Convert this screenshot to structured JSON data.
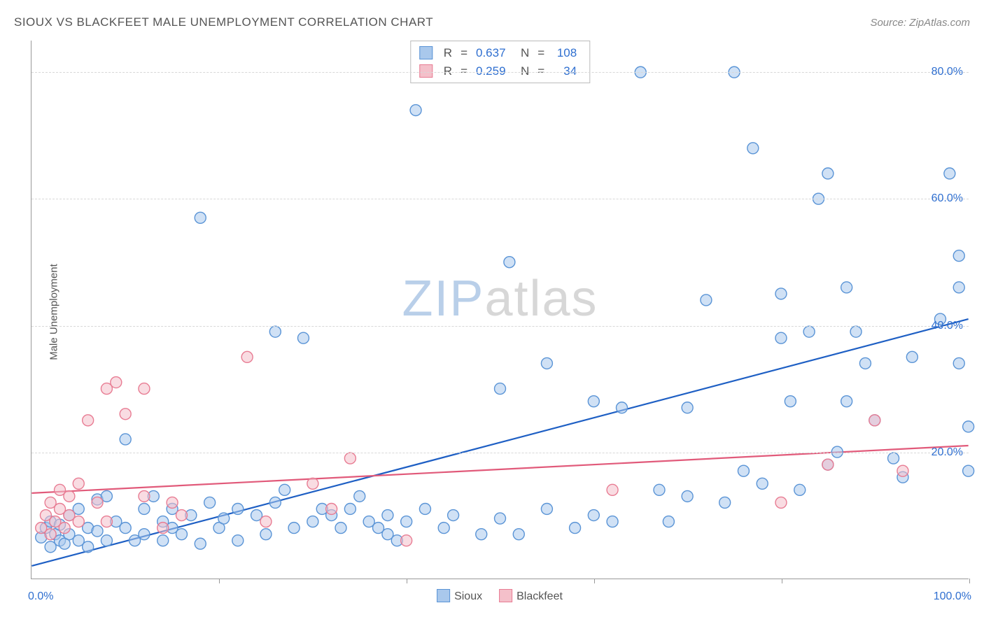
{
  "title": "SIOUX VS BLACKFEET MALE UNEMPLOYMENT CORRELATION CHART",
  "source_label": "Source: ZipAtlas.com",
  "ylabel": "Male Unemployment",
  "watermark": {
    "left": "ZIP",
    "right": "atlas"
  },
  "chart": {
    "type": "scatter",
    "background_color": "#ffffff",
    "border_color": "#999999",
    "grid_color": "#d8d8d8",
    "grid_dash": "4,4",
    "xlim": [
      0,
      100
    ],
    "ylim": [
      0,
      85
    ],
    "xticks": [
      0,
      20,
      40,
      60,
      80,
      100
    ],
    "yticks": [
      20,
      40,
      60,
      80
    ],
    "ytick_labels": [
      "20.0%",
      "40.0%",
      "60.0%",
      "80.0%"
    ],
    "ytick_color": "#2f6fd0",
    "xmin_label": "0.0%",
    "xmax_label": "100.0%",
    "xlabel_color": "#2f6fd0",
    "label_fontsize": 16,
    "title_fontsize": 17,
    "marker_radius": 8,
    "marker_stroke_width": 1.4,
    "trend_line_width": 2.2,
    "series": [
      {
        "name": "Sioux",
        "fill_color": "#a9c8ec",
        "stroke_color": "#5a94d6",
        "fill_opacity": 0.55,
        "line_color": "#1e5fc4",
        "R": "0.637",
        "N": "108",
        "trend": {
          "x1": 0,
          "y1": 2,
          "x2": 100,
          "y2": 41
        },
        "points": [
          [
            1,
            6.5
          ],
          [
            1.5,
            8
          ],
          [
            2,
            5
          ],
          [
            2,
            9
          ],
          [
            2.5,
            7
          ],
          [
            3,
            6
          ],
          [
            3,
            8.5
          ],
          [
            3.5,
            5.5
          ],
          [
            4,
            7
          ],
          [
            4,
            10
          ],
          [
            5,
            6
          ],
          [
            5,
            11
          ],
          [
            6,
            5
          ],
          [
            6,
            8
          ],
          [
            7,
            7.5
          ],
          [
            7,
            12.5
          ],
          [
            8,
            6
          ],
          [
            8,
            13
          ],
          [
            9,
            9
          ],
          [
            10,
            22
          ],
          [
            10,
            8
          ],
          [
            11,
            6
          ],
          [
            12,
            11
          ],
          [
            12,
            7
          ],
          [
            13,
            13
          ],
          [
            14,
            9
          ],
          [
            14,
            6
          ],
          [
            15,
            8
          ],
          [
            15,
            11
          ],
          [
            16,
            7
          ],
          [
            17,
            10
          ],
          [
            18,
            5.5
          ],
          [
            18,
            57
          ],
          [
            19,
            12
          ],
          [
            20,
            8
          ],
          [
            20.5,
            9.5
          ],
          [
            22,
            6
          ],
          [
            22,
            11
          ],
          [
            24,
            10
          ],
          [
            25,
            7
          ],
          [
            26,
            12
          ],
          [
            26,
            39
          ],
          [
            27,
            14
          ],
          [
            28,
            8
          ],
          [
            29,
            38
          ],
          [
            30,
            9
          ],
          [
            31,
            11
          ],
          [
            32,
            10
          ],
          [
            33,
            8
          ],
          [
            34,
            11
          ],
          [
            35,
            13
          ],
          [
            36,
            9
          ],
          [
            37,
            8
          ],
          [
            38,
            10
          ],
          [
            38,
            7
          ],
          [
            39,
            6
          ],
          [
            40,
            9
          ],
          [
            41,
            74
          ],
          [
            42,
            11
          ],
          [
            44,
            8
          ],
          [
            45,
            10
          ],
          [
            48,
            7
          ],
          [
            50,
            9.5
          ],
          [
            50,
            30
          ],
          [
            51,
            50
          ],
          [
            52,
            7
          ],
          [
            55,
            11
          ],
          [
            55,
            34
          ],
          [
            58,
            8
          ],
          [
            60,
            10
          ],
          [
            60,
            28
          ],
          [
            62,
            9
          ],
          [
            63,
            27
          ],
          [
            65,
            80
          ],
          [
            67,
            14
          ],
          [
            68,
            9
          ],
          [
            70,
            13
          ],
          [
            70,
            27
          ],
          [
            72,
            44
          ],
          [
            74,
            12
          ],
          [
            75,
            80
          ],
          [
            76,
            17
          ],
          [
            77,
            68
          ],
          [
            78,
            15
          ],
          [
            80,
            38
          ],
          [
            80,
            45
          ],
          [
            81,
            28
          ],
          [
            82,
            14
          ],
          [
            83,
            39
          ],
          [
            84,
            60
          ],
          [
            85,
            18
          ],
          [
            85,
            64
          ],
          [
            86,
            20
          ],
          [
            87,
            28
          ],
          [
            87,
            46
          ],
          [
            88,
            39
          ],
          [
            89,
            34
          ],
          [
            90,
            25
          ],
          [
            92,
            19
          ],
          [
            93,
            16
          ],
          [
            94,
            35
          ],
          [
            97,
            41
          ],
          [
            98,
            64
          ],
          [
            99,
            51
          ],
          [
            99,
            46
          ],
          [
            99,
            34
          ],
          [
            100,
            24
          ],
          [
            100,
            17
          ]
        ]
      },
      {
        "name": "Blackfeet",
        "fill_color": "#f4c0ca",
        "stroke_color": "#e87c93",
        "fill_opacity": 0.55,
        "line_color": "#e15a7a",
        "R": "0.259",
        "N": "34",
        "trend": {
          "x1": 0,
          "y1": 13.5,
          "x2": 100,
          "y2": 21
        },
        "points": [
          [
            1,
            8
          ],
          [
            1.5,
            10
          ],
          [
            2,
            12
          ],
          [
            2,
            7
          ],
          [
            2.5,
            9
          ],
          [
            3,
            11
          ],
          [
            3,
            14
          ],
          [
            3.5,
            8
          ],
          [
            4,
            13
          ],
          [
            4,
            10
          ],
          [
            5,
            9
          ],
          [
            5,
            15
          ],
          [
            6,
            25
          ],
          [
            7,
            12
          ],
          [
            8,
            9
          ],
          [
            8,
            30
          ],
          [
            9,
            31
          ],
          [
            10,
            26
          ],
          [
            12,
            13
          ],
          [
            12,
            30
          ],
          [
            14,
            8
          ],
          [
            15,
            12
          ],
          [
            16,
            10
          ],
          [
            23,
            35
          ],
          [
            25,
            9
          ],
          [
            30,
            15
          ],
          [
            32,
            11
          ],
          [
            34,
            19
          ],
          [
            40,
            6
          ],
          [
            62,
            14
          ],
          [
            80,
            12
          ],
          [
            85,
            18
          ],
          [
            90,
            25
          ],
          [
            93,
            17
          ]
        ]
      }
    ]
  },
  "stats_legend": {
    "r_label": "R",
    "n_label": "N",
    "eq": "=",
    "value_color": "#2f6fd0",
    "text_color": "#555555"
  },
  "bottom_legend": {
    "items": [
      {
        "label": "Sioux",
        "fill": "#a9c8ec",
        "stroke": "#5a94d6"
      },
      {
        "label": "Blackfeet",
        "fill": "#f4c0ca",
        "stroke": "#e87c93"
      }
    ]
  }
}
